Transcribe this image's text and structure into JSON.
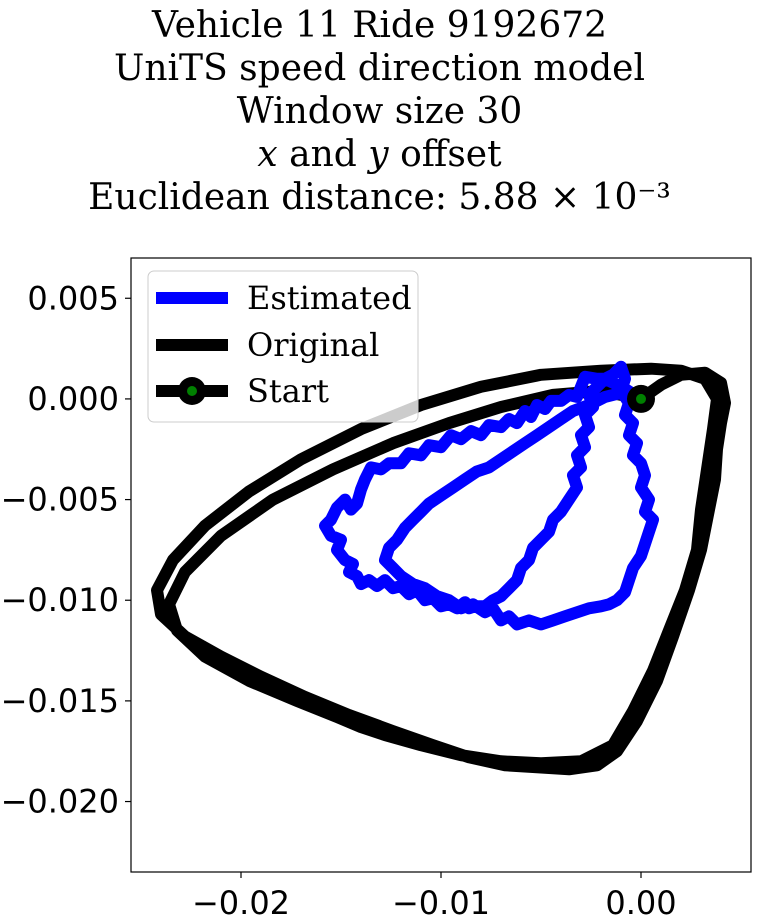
{
  "title_lines": [
    "Vehicle 11 Ride 9192672",
    "UniTS speed direction model",
    "Window size 30",
    "x and y offset",
    "Euclidean distance: 5.88 × 10⁻³"
  ],
  "title_italic_vars": [
    "x",
    "y"
  ],
  "chart_data": {
    "type": "line",
    "title": "Vehicle 11 Ride 9192672 UniTS speed direction model Window size 30 x and y offset Euclidean distance: 5.88 × 10⁻³",
    "xlabel": "",
    "ylabel": "",
    "xlim": [
      -0.0255,
      0.0055
    ],
    "ylim": [
      -0.0235,
      0.007
    ],
    "x_ticks": [
      -0.02,
      -0.01,
      0.0
    ],
    "x_tick_labels": [
      "−0.02",
      "−0.01",
      "0.00"
    ],
    "y_ticks": [
      0.005,
      0.0,
      -0.005,
      -0.01,
      -0.015,
      -0.02
    ],
    "y_tick_labels": [
      "0.005",
      "0.000",
      "−0.005",
      "−0.010",
      "−0.015",
      "−0.020"
    ],
    "grid": false,
    "legend_position": "upper-left",
    "series": [
      {
        "name": "Estimated",
        "color": "#0000ff",
        "points": [
          [
            0.0,
            0.0
          ],
          [
            -0.0008,
            0.0005
          ],
          [
            -0.0014,
            0.0008
          ],
          [
            -0.0018,
            0.001
          ],
          [
            -0.0022,
            0.001
          ],
          [
            -0.0028,
            0.0011
          ],
          [
            -0.003,
            0.0006
          ],
          [
            -0.0032,
            0.0001
          ],
          [
            -0.0036,
            0.0002
          ],
          [
            -0.004,
            -0.0001
          ],
          [
            -0.0045,
            -0.0001
          ],
          [
            -0.0048,
            -0.0005
          ],
          [
            -0.0052,
            -0.0003
          ],
          [
            -0.0055,
            -0.0009
          ],
          [
            -0.0058,
            -0.0006
          ],
          [
            -0.0062,
            -0.0012
          ],
          [
            -0.0066,
            -0.001
          ],
          [
            -0.007,
            -0.0014
          ],
          [
            -0.0076,
            -0.0013
          ],
          [
            -0.008,
            -0.0018
          ],
          [
            -0.0085,
            -0.0016
          ],
          [
            -0.009,
            -0.002
          ],
          [
            -0.0095,
            -0.0018
          ],
          [
            -0.01,
            -0.0024
          ],
          [
            -0.0106,
            -0.0023
          ],
          [
            -0.011,
            -0.0028
          ],
          [
            -0.0116,
            -0.0027
          ],
          [
            -0.012,
            -0.0032
          ],
          [
            -0.0126,
            -0.0032
          ],
          [
            -0.013,
            -0.0035
          ],
          [
            -0.0135,
            -0.0034
          ],
          [
            -0.0138,
            -0.004
          ],
          [
            -0.014,
            -0.0045
          ],
          [
            -0.0142,
            -0.0052
          ],
          [
            -0.0145,
            -0.0055
          ],
          [
            -0.0148,
            -0.005
          ],
          [
            -0.0152,
            -0.0054
          ],
          [
            -0.0155,
            -0.006
          ],
          [
            -0.0158,
            -0.0063
          ],
          [
            -0.0155,
            -0.0068
          ],
          [
            -0.015,
            -0.007
          ],
          [
            -0.0152,
            -0.0075
          ],
          [
            -0.0148,
            -0.008
          ],
          [
            -0.0144,
            -0.0082
          ],
          [
            -0.0146,
            -0.0086
          ],
          [
            -0.0142,
            -0.0088
          ],
          [
            -0.014,
            -0.0092
          ],
          [
            -0.0136,
            -0.009
          ],
          [
            -0.0132,
            -0.0093
          ],
          [
            -0.0128,
            -0.009
          ],
          [
            -0.0124,
            -0.0094
          ],
          [
            -0.012,
            -0.0093
          ],
          [
            -0.0116,
            -0.0097
          ],
          [
            -0.0112,
            -0.0095
          ],
          [
            -0.0108,
            -0.01
          ],
          [
            -0.0104,
            -0.0099
          ],
          [
            -0.01,
            -0.0103
          ],
          [
            -0.0096,
            -0.0102
          ],
          [
            -0.0092,
            -0.0104
          ],
          [
            -0.0088,
            -0.0101
          ],
          [
            -0.0086,
            -0.0104
          ],
          [
            -0.0083,
            -0.0103
          ],
          [
            -0.0078,
            -0.0103
          ],
          [
            -0.0074,
            -0.01
          ],
          [
            -0.007,
            -0.0098
          ],
          [
            -0.0066,
            -0.0094
          ],
          [
            -0.0062,
            -0.009
          ],
          [
            -0.006,
            -0.0084
          ],
          [
            -0.0056,
            -0.008
          ],
          [
            -0.0054,
            -0.0074
          ],
          [
            -0.005,
            -0.007
          ],
          [
            -0.0046,
            -0.0066
          ],
          [
            -0.0044,
            -0.006
          ],
          [
            -0.004,
            -0.0056
          ],
          [
            -0.0036,
            -0.005
          ],
          [
            -0.0032,
            -0.0044
          ],
          [
            -0.0034,
            -0.0038
          ],
          [
            -0.003,
            -0.0034
          ],
          [
            -0.0032,
            -0.0028
          ],
          [
            -0.0028,
            -0.0024
          ],
          [
            -0.003,
            -0.0018
          ],
          [
            -0.0026,
            -0.0014
          ],
          [
            -0.0028,
            -0.0008
          ],
          [
            -0.0024,
            -0.0004
          ],
          [
            -0.0026,
            0.0002
          ],
          [
            -0.0022,
            0.0006
          ],
          [
            -0.0018,
            0.001
          ],
          [
            -0.0014,
            0.0012
          ],
          [
            -0.001,
            0.0016
          ],
          [
            -0.0008,
            0.001
          ],
          [
            -0.001,
            0.0004
          ],
          [
            -0.0006,
            -0.0002
          ],
          [
            -0.0008,
            -0.0008
          ],
          [
            -0.0004,
            -0.0012
          ],
          [
            -0.0006,
            -0.0018
          ],
          [
            -0.0002,
            -0.0022
          ],
          [
            -0.0004,
            -0.0028
          ],
          [
            0.0,
            -0.0032
          ],
          [
            0.0002,
            -0.0038
          ],
          [
            0.0,
            -0.0044
          ],
          [
            0.0004,
            -0.005
          ],
          [
            0.0002,
            -0.0056
          ],
          [
            0.0006,
            -0.006
          ],
          [
            0.0004,
            -0.0066
          ],
          [
            0.0002,
            -0.0072
          ],
          [
            0.0,
            -0.0078
          ],
          [
            -0.0004,
            -0.0084
          ],
          [
            -0.0006,
            -0.009
          ],
          [
            -0.0008,
            -0.0096
          ],
          [
            -0.0012,
            -0.01
          ],
          [
            -0.0016,
            -0.0102
          ],
          [
            -0.002,
            -0.0103
          ],
          [
            -0.0026,
            -0.0104
          ],
          [
            -0.0032,
            -0.0106
          ],
          [
            -0.0038,
            -0.0108
          ],
          [
            -0.0044,
            -0.011
          ],
          [
            -0.005,
            -0.0112
          ],
          [
            -0.0056,
            -0.011
          ],
          [
            -0.0062,
            -0.0112
          ],
          [
            -0.0066,
            -0.0108
          ],
          [
            -0.007,
            -0.011
          ],
          [
            -0.0074,
            -0.0104
          ],
          [
            -0.0078,
            -0.0106
          ],
          [
            -0.0084,
            -0.0102
          ],
          [
            -0.009,
            -0.0104
          ],
          [
            -0.0096,
            -0.01
          ],
          [
            -0.0102,
            -0.0098
          ],
          [
            -0.0108,
            -0.0094
          ],
          [
            -0.0114,
            -0.0092
          ],
          [
            -0.012,
            -0.0088
          ],
          [
            -0.0124,
            -0.0084
          ],
          [
            -0.0128,
            -0.008
          ],
          [
            -0.0126,
            -0.0074
          ],
          [
            -0.0122,
            -0.007
          ],
          [
            -0.0118,
            -0.0064
          ],
          [
            -0.0114,
            -0.006
          ],
          [
            -0.011,
            -0.0056
          ],
          [
            -0.0106,
            -0.0052
          ],
          [
            -0.01,
            -0.0048
          ],
          [
            -0.0094,
            -0.0044
          ],
          [
            -0.0088,
            -0.004
          ],
          [
            -0.0082,
            -0.0036
          ],
          [
            -0.0076,
            -0.0034
          ],
          [
            -0.007,
            -0.003
          ],
          [
            -0.0064,
            -0.0026
          ],
          [
            -0.0058,
            -0.0022
          ],
          [
            -0.0052,
            -0.0018
          ],
          [
            -0.0046,
            -0.0014
          ],
          [
            -0.004,
            -0.001
          ],
          [
            -0.0034,
            -0.0006
          ],
          [
            -0.0026,
            -0.0003
          ],
          [
            -0.0018,
            0.0001
          ],
          [
            -0.001,
            0.0003
          ],
          [
            -0.0004,
            0.0001
          ],
          [
            0.0,
            0.0
          ]
        ]
      },
      {
        "name": "Original",
        "color": "#000000",
        "points": [
          [
            0.0,
            0.0
          ],
          [
            0.001,
            0.0007
          ],
          [
            0.002,
            0.0012
          ],
          [
            0.0032,
            0.0013
          ],
          [
            0.004,
            0.0008
          ],
          [
            0.0042,
            -0.0002
          ],
          [
            0.004,
            -0.0012
          ],
          [
            0.0038,
            -0.0025
          ],
          [
            0.0037,
            -0.004
          ],
          [
            0.0034,
            -0.0055
          ],
          [
            0.003,
            -0.0075
          ],
          [
            0.0024,
            -0.0095
          ],
          [
            0.0016,
            -0.0118
          ],
          [
            0.0008,
            -0.014
          ],
          [
            -0.0002,
            -0.016
          ],
          [
            -0.0012,
            -0.0175
          ],
          [
            -0.0022,
            -0.0182
          ],
          [
            -0.0036,
            -0.0184
          ],
          [
            -0.0052,
            -0.0183
          ],
          [
            -0.0068,
            -0.0182
          ],
          [
            -0.0086,
            -0.0178
          ],
          [
            -0.0104,
            -0.0172
          ],
          [
            -0.0124,
            -0.0165
          ],
          [
            -0.0146,
            -0.0157
          ],
          [
            -0.0168,
            -0.0148
          ],
          [
            -0.019,
            -0.0138
          ],
          [
            -0.021,
            -0.0128
          ],
          [
            -0.0228,
            -0.0118
          ],
          [
            -0.024,
            -0.0107
          ],
          [
            -0.0242,
            -0.0095
          ],
          [
            -0.0234,
            -0.008
          ],
          [
            -0.0218,
            -0.0063
          ],
          [
            -0.0196,
            -0.0046
          ],
          [
            -0.017,
            -0.003
          ],
          [
            -0.014,
            -0.0015
          ],
          [
            -0.011,
            -0.0003
          ],
          [
            -0.008,
            0.0006
          ],
          [
            -0.005,
            0.0012
          ],
          [
            -0.002,
            0.0014
          ],
          [
            0.0005,
            0.0015
          ],
          [
            0.002,
            0.0014
          ],
          [
            0.0032,
            0.001
          ],
          [
            0.0038,
            0.0
          ],
          [
            0.0036,
            -0.0015
          ],
          [
            0.0033,
            -0.0035
          ],
          [
            0.003,
            -0.0055
          ],
          [
            0.0028,
            -0.0075
          ],
          [
            0.0022,
            -0.0095
          ],
          [
            0.0014,
            -0.0115
          ],
          [
            0.0006,
            -0.0135
          ],
          [
            -0.0004,
            -0.0155
          ],
          [
            -0.0014,
            -0.0172
          ],
          [
            -0.003,
            -0.018
          ],
          [
            -0.005,
            -0.0181
          ],
          [
            -0.007,
            -0.018
          ],
          [
            -0.009,
            -0.0177
          ],
          [
            -0.011,
            -0.0172
          ],
          [
            -0.0128,
            -0.0167
          ],
          [
            -0.014,
            -0.0163
          ],
          [
            -0.0152,
            -0.0158
          ],
          [
            -0.0172,
            -0.015
          ],
          [
            -0.0196,
            -0.014
          ],
          [
            -0.0218,
            -0.0128
          ],
          [
            -0.0232,
            -0.0115
          ],
          [
            -0.0236,
            -0.0102
          ],
          [
            -0.0228,
            -0.0086
          ],
          [
            -0.021,
            -0.0068
          ],
          [
            -0.0184,
            -0.005
          ],
          [
            -0.0154,
            -0.0035
          ],
          [
            -0.0124,
            -0.0022
          ],
          [
            -0.0096,
            -0.0012
          ],
          [
            -0.007,
            -0.0004
          ],
          [
            -0.0044,
            0.0002
          ],
          [
            -0.002,
            0.0004
          ],
          [
            0.0,
            0.0
          ]
        ]
      }
    ],
    "start_point": {
      "name": "Start",
      "x": 0.0,
      "y": 0.0,
      "marker_color": "#008000",
      "edge_color": "#000000"
    }
  }
}
